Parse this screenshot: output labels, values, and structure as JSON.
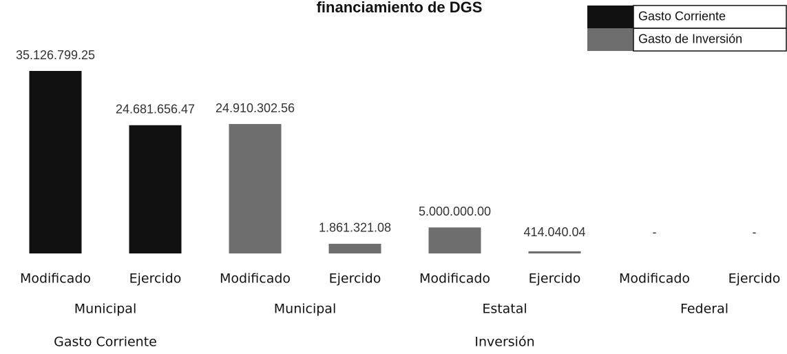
{
  "chart_data": {
    "type": "bar",
    "title": "financiamiento de DGS",
    "categories": [
      "Modificado",
      "Ejercido",
      "Modificado",
      "Ejercido",
      "Modificado",
      "Ejercido",
      "Modificado",
      "Ejercido"
    ],
    "groups": [
      {
        "label": "Municipal",
        "size": 2
      },
      {
        "label": "Municipal",
        "size": 2
      },
      {
        "label": "Estatal",
        "size": 2
      },
      {
        "label": "Federal",
        "size": 2
      }
    ],
    "supergroups": [
      {
        "label": "Gasto Corriente",
        "size": 1
      },
      {
        "label": "Inversión",
        "size": 3
      }
    ],
    "series": [
      {
        "name": "Gasto Corriente",
        "color": "#111111",
        "values": [
          35126799.25,
          24681656.47,
          null,
          null,
          null,
          null,
          null,
          null
        ],
        "value_labels": [
          "35.126.799.25",
          "24.681.656.47",
          null,
          null,
          null,
          null,
          null,
          null
        ]
      },
      {
        "name": "Gasto de Inversión",
        "color": "#6e6e6e",
        "values": [
          null,
          null,
          24910302.56,
          1861321.08,
          5000000.0,
          414040.04,
          0,
          0
        ],
        "value_labels": [
          null,
          null,
          "24.910.302.56",
          "1.861.321.08",
          "5.000.000.00",
          "414.040.04",
          "-",
          "-"
        ]
      }
    ],
    "legend": "top-right"
  }
}
